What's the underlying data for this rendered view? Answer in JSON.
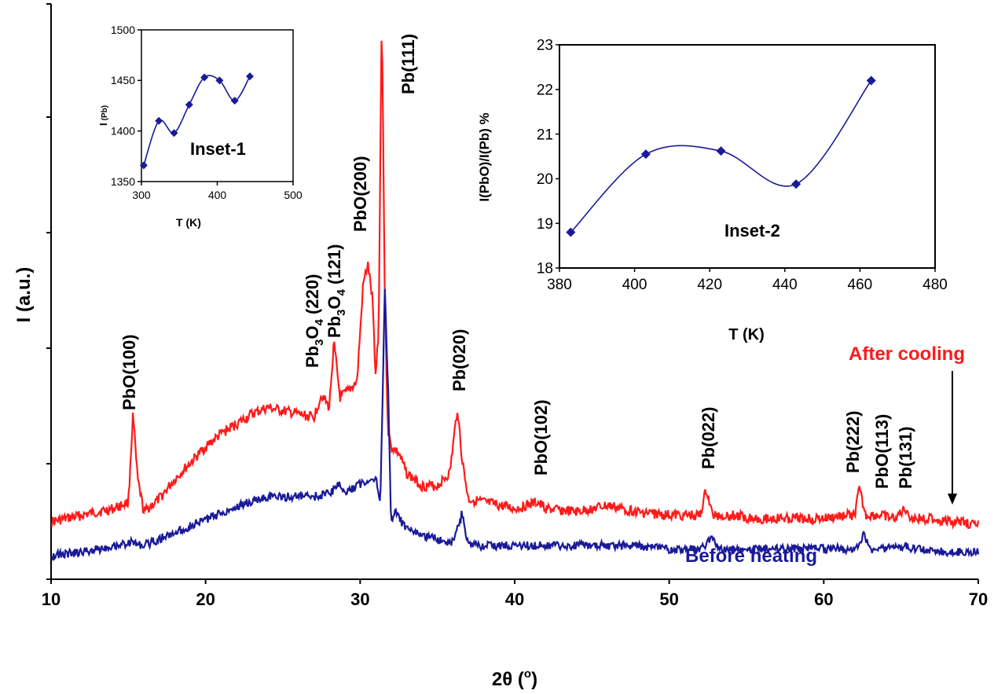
{
  "chart_data": [
    {
      "type": "line",
      "name": "main",
      "title": "",
      "xlabel": "2θ (°)",
      "ylabel": "I (a.u.)",
      "xlim": [
        10,
        70
      ],
      "xticks": [
        10,
        20,
        30,
        40,
        50,
        60,
        70
      ],
      "y_tick_labels_shown": false,
      "series": [
        {
          "name": "After cooling",
          "color": "#ff1a1a",
          "label": "After cooling",
          "x": [
            10,
            12,
            14,
            15,
            15.3,
            15.6,
            16,
            17,
            18,
            19,
            20,
            21,
            22,
            23,
            24,
            25,
            26,
            27,
            27.5,
            28,
            28.3,
            28.7,
            29.2,
            29.8,
            30.2,
            30.5,
            30.8,
            31.0,
            31.2,
            31.4,
            31.6,
            31.8,
            32.0,
            32.5,
            33,
            34,
            35,
            35.8,
            36.3,
            36.6,
            37,
            38,
            39,
            40,
            41.5,
            42,
            44,
            46,
            48,
            50,
            51,
            52,
            52.4,
            52.8,
            54,
            56,
            58,
            60,
            61.5,
            62,
            62.3,
            62.7,
            63.5,
            64.5,
            65.3,
            65.7,
            67,
            68,
            69,
            70
          ],
          "y": [
            7,
            9,
            11,
            13,
            40,
            20,
            10,
            14,
            20,
            25,
            30,
            34,
            37,
            40,
            42,
            41,
            40,
            39,
            46,
            42,
            62,
            45,
            47,
            50,
            80,
            86,
            75,
            52,
            66,
            165,
            75,
            35,
            30,
            28,
            22,
            18,
            18,
            22,
            42,
            26,
            14,
            13,
            12,
            11,
            13,
            11,
            10,
            12,
            10,
            9,
            9,
            9,
            17,
            9,
            9,
            8,
            8,
            8,
            9,
            9,
            17,
            9,
            9,
            8,
            11,
            8,
            8,
            7,
            7,
            6
          ]
        },
        {
          "name": "Before heating",
          "color": "#1a1a99",
          "label": "Before heating",
          "x": [
            10,
            12,
            14,
            15.3,
            16,
            18,
            20,
            22,
            24,
            26,
            27,
            28,
            28.7,
            29,
            30,
            31,
            31.3,
            31.6,
            31.8,
            32.0,
            32.3,
            33,
            34,
            35,
            36,
            36.6,
            37,
            38,
            40,
            42,
            44,
            46,
            48,
            50,
            52,
            52.8,
            53.2,
            56,
            60,
            62,
            62.6,
            63,
            64,
            65.3,
            65.7,
            68,
            70
          ],
          "y": [
            2,
            3,
            5,
            6,
            5,
            9,
            13,
            17,
            20,
            20,
            20,
            21,
            24,
            21,
            24,
            26,
            18,
            83,
            55,
            13,
            15,
            10,
            8,
            7,
            6,
            15,
            5,
            5,
            5,
            5,
            5,
            5,
            5,
            4,
            4,
            7,
            4,
            4,
            4,
            4,
            8,
            4,
            4,
            5,
            4,
            3,
            3
          ]
        }
      ],
      "annotations": [
        "PbO(100)",
        "Pb3O4 (220)",
        "Pb3O4 (121)",
        "PbO(200)",
        "Pb(111)",
        "Pb(020)",
        "PbO(102)",
        "Pb(022)",
        "Pb(222)",
        "PbO(113)",
        "Pb(131)"
      ]
    },
    {
      "type": "line",
      "name": "Inset-1",
      "title": "Inset-1",
      "xlabel": "T (K)",
      "ylabel": "I (Pb)",
      "xlim": [
        300,
        500
      ],
      "ylim": [
        1350,
        1500
      ],
      "xticks": [
        300,
        400,
        500
      ],
      "yticks": [
        1350,
        1400,
        1450,
        1500
      ],
      "x": [
        303,
        323,
        343,
        363,
        383,
        403,
        423,
        443
      ],
      "y": [
        1366,
        1410,
        1398,
        1426,
        1453,
        1450,
        1430,
        1454
      ]
    },
    {
      "type": "line",
      "name": "Inset-2",
      "title": "Inset-2",
      "xlabel": "T (K)",
      "ylabel": "I(PbO)/I(Pb) %",
      "xlim": [
        380,
        480
      ],
      "ylim": [
        18,
        23
      ],
      "xticks": [
        380,
        400,
        420,
        440,
        460,
        480
      ],
      "yticks": [
        18,
        19,
        20,
        21,
        22,
        23
      ],
      "x": [
        383,
        403,
        423,
        443,
        463
      ],
      "y": [
        18.8,
        20.55,
        20.62,
        19.88,
        22.2
      ]
    }
  ],
  "labels": {
    "main_xlabel": "2θ (",
    "main_xlabel_deg": "o",
    "main_xlabel_close": ")",
    "main_ylabel": "I (a.u.)",
    "after_cooling": "After cooling",
    "before_heating": "Before heating",
    "inset1_title": "Inset-1",
    "inset1_xlabel": "T (K)",
    "inset1_ylabel": "I",
    "inset1_ylabel_sub": "(Pb)",
    "inset2_title": "Inset-2",
    "inset2_xlabel": "T (K)",
    "inset2_ylabel": "I(PbO)/I(Pb) %",
    "pbo100": "PbO(100)",
    "pb3o4_220_base": "Pb",
    "pb3o4_220_sub1": "3",
    "pb3o4_220_mid": "O",
    "pb3o4_220_sub2": "4",
    "pb3o4_220_tail": " (220)",
    "pb3o4_121_tail": " (121)",
    "pbo200": "PbO(200)",
    "pb111": "Pb(111)",
    "pb020": "Pb(020)",
    "pbo102": "PbO(102)",
    "pb022": "Pb(022)",
    "pb222": "Pb(222)",
    "pbo113": "PbO(113)",
    "pb131": "Pb(131)"
  }
}
